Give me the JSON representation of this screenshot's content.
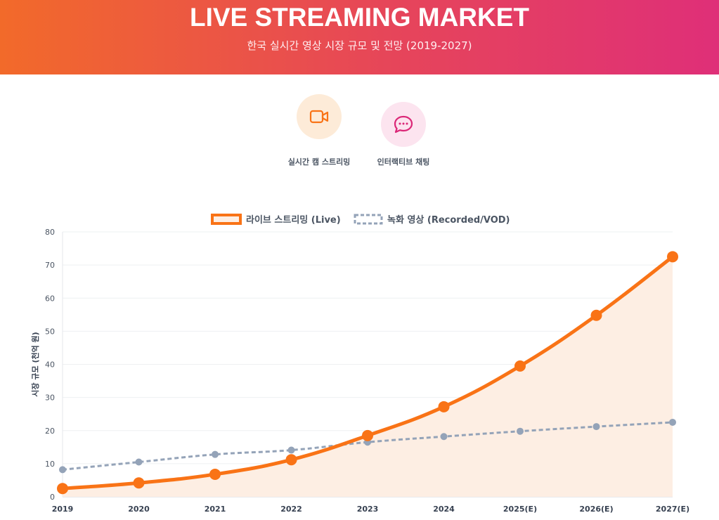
{
  "header": {
    "title": "LIVE STREAMING MARKET",
    "subtitle": "한국 실시간 영상 시장 규모 및 전망 (2019-2027)"
  },
  "features": [
    {
      "label": "실시간 캠 스트리밍",
      "icon": "video-camera-icon",
      "color": "#f97316",
      "bg": "#fdebd8"
    },
    {
      "label": "인터랙티브 채팅",
      "icon": "chat-bubble-icon",
      "color": "#db2777",
      "bg": "#fce4ef"
    }
  ],
  "chart_data": {
    "type": "line",
    "title": "",
    "xlabel": "",
    "ylabel": "시장 규모 (천억 원)",
    "categories": [
      "2019",
      "2020",
      "2021",
      "2022",
      "2023",
      "2024",
      "2025(E)",
      "2026(E)",
      "2027(E)"
    ],
    "ylim": [
      0,
      80
    ],
    "yticks": [
      0,
      10,
      20,
      30,
      40,
      50,
      60,
      70,
      80
    ],
    "legend_position": "top-center",
    "series": [
      {
        "name": "라이브 스트리밍 (Live)",
        "values": [
          2.5,
          4.2,
          6.8,
          11.2,
          18.5,
          27.2,
          39.5,
          54.8,
          72.5
        ],
        "color": "#f97316",
        "fill": "#fdeee3",
        "style": "solid"
      },
      {
        "name": "녹화 영상 (Recorded/VOD)",
        "values": [
          8.2,
          10.5,
          12.8,
          14.1,
          16.5,
          18.2,
          19.8,
          21.2,
          22.5
        ],
        "color": "#94a3b8",
        "style": "dashed"
      }
    ]
  }
}
